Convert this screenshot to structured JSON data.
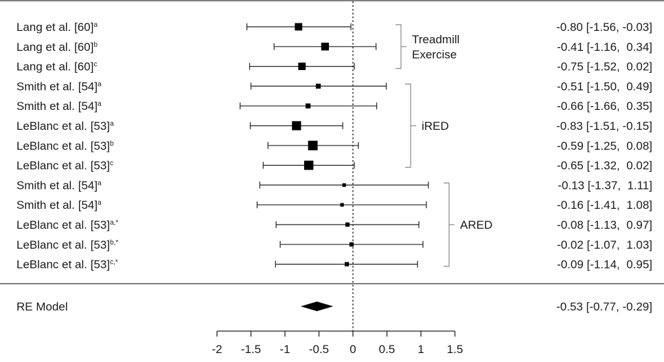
{
  "chart_data": {
    "type": "forest",
    "xlim": [
      -2,
      1.5
    ],
    "ticks": [
      -2,
      -1.5,
      -1,
      -0.5,
      0,
      0.5,
      1,
      1.5
    ],
    "tick_labels": [
      "-2",
      "-1.5",
      "-1",
      "-0.5",
      "0",
      "0.5",
      "1",
      "1.5"
    ],
    "reference_line": 0,
    "studies": [
      {
        "label": "Lang et al. [60]",
        "sup": "a",
        "est": -0.8,
        "lo": -1.56,
        "hi": -0.03,
        "ci_text": "-0.80 [-1.56, -0.03]",
        "weight": 0.63
      },
      {
        "label": "Lang et al. [60]",
        "sup": "b",
        "est": -0.41,
        "lo": -1.16,
        "hi": 0.34,
        "ci_text": "-0.41 [-1.16,  0.34]",
        "weight": 0.66
      },
      {
        "label": "Lang et al. [60]",
        "sup": "c",
        "est": -0.75,
        "lo": -1.52,
        "hi": 0.02,
        "ci_text": "-0.75 [-1.52,  0.02]",
        "weight": 0.63
      },
      {
        "label": "Smith et al. [54]",
        "sup": "a",
        "est": -0.51,
        "lo": -1.5,
        "hi": 0.49,
        "ci_text": "-0.51 [-1.50,  0.49]",
        "weight": 0.37
      },
      {
        "label": "Smith et al. [54]",
        "sup": "a",
        "est": -0.66,
        "lo": -1.66,
        "hi": 0.35,
        "ci_text": "-0.66 [-1.66,  0.35]",
        "weight": 0.37
      },
      {
        "label": "LeBlanc et al. [53]",
        "sup": "a",
        "est": -0.83,
        "lo": -1.51,
        "hi": -0.15,
        "ci_text": "-0.83 [-1.51, -0.15]",
        "weight": 0.8
      },
      {
        "label": "LeBlanc et al. [53]",
        "sup": "b",
        "est": -0.59,
        "lo": -1.25,
        "hi": 0.08,
        "ci_text": "-0.59 [-1.25,  0.08]",
        "weight": 0.85
      },
      {
        "label": "LeBlanc et al. [53]",
        "sup": "c",
        "est": -0.65,
        "lo": -1.32,
        "hi": 0.02,
        "ci_text": "-0.65 [-1.32,  0.02]",
        "weight": 0.82
      },
      {
        "label": "Smith et al. [54]",
        "sup": "a",
        "est": -0.13,
        "lo": -1.37,
        "hi": 1.11,
        "ci_text": "-0.13 [-1.37,  1.11]",
        "weight": 0.23
      },
      {
        "label": "Smith et al. [54]",
        "sup": "a",
        "est": -0.16,
        "lo": -1.41,
        "hi": 1.08,
        "ci_text": "-0.16 [-1.41,  1.08]",
        "weight": 0.23
      },
      {
        "label": "LeBlanc et al. [53]",
        "sup": "a,*",
        "est": -0.08,
        "lo": -1.13,
        "hi": 0.97,
        "ci_text": "-0.08 [-1.13,  0.97]",
        "weight": 0.3
      },
      {
        "label": "LeBlanc et al. [53]",
        "sup": "b,*",
        "est": -0.02,
        "lo": -1.07,
        "hi": 1.03,
        "ci_text": "-0.02 [-1.07,  1.03]",
        "weight": 0.3
      },
      {
        "label": "LeBlanc et al. [53]",
        "sup": "c,*",
        "est": -0.09,
        "lo": -1.14,
        "hi": 0.95,
        "ci_text": "-0.09 [-1.14,  0.95]",
        "weight": 0.3
      }
    ],
    "groups": [
      {
        "lines": [
          "Treadmill",
          "Exercise"
        ],
        "from": 0,
        "to": 2
      },
      {
        "lines": [
          "iRED"
        ],
        "from": 3,
        "to": 7
      },
      {
        "lines": [
          "ARED"
        ],
        "from": 8,
        "to": 12
      }
    ],
    "summary": {
      "label": "RE Model",
      "est": -0.53,
      "lo": -0.77,
      "hi": -0.29,
      "ci_text": "-0.53 [-0.77, -0.29]"
    }
  }
}
